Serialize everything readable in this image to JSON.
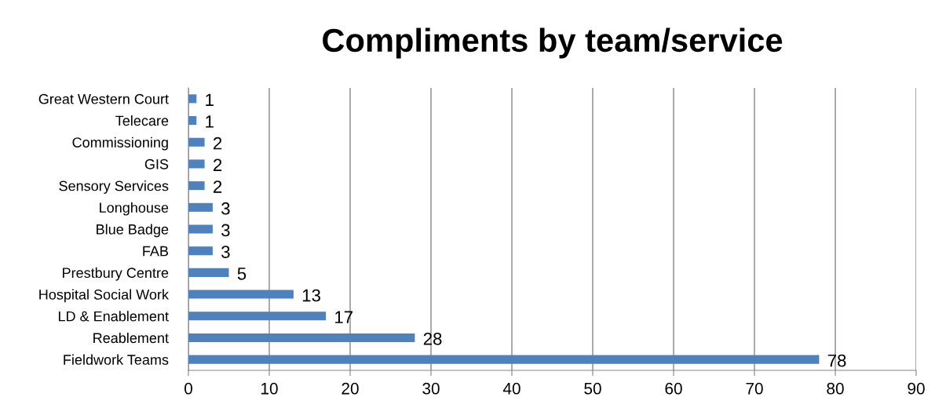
{
  "chart_data": {
    "type": "bar",
    "orientation": "horizontal",
    "title": "Compliments by team/service",
    "categories": [
      "Great Western Court",
      "Telecare",
      "Commissioning",
      "GIS",
      "Sensory Services",
      "Longhouse",
      "Blue Badge",
      "FAB",
      "Prestbury Centre",
      "Hospital Social Work",
      "LD & Enablement",
      "Reablement",
      "Fieldwork Teams"
    ],
    "values": [
      1,
      1,
      2,
      2,
      2,
      3,
      3,
      3,
      5,
      13,
      17,
      28,
      78
    ],
    "color": "#4f81bd",
    "xlim": [
      0,
      90
    ],
    "xticks": [
      0,
      10,
      20,
      30,
      40,
      50,
      60,
      70,
      80,
      90
    ],
    "grid": "x",
    "data_labels": true
  }
}
